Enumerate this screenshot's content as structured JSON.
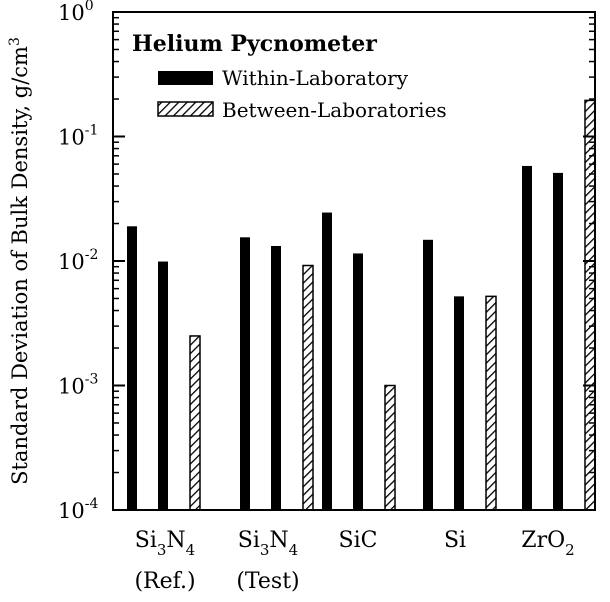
{
  "chart_data": {
    "type": "bar",
    "title": "Helium Pycnometer",
    "ylabel": "Standard Deviation of Bulk Density, g/cm",
    "ylabel_sup": "3",
    "yscale": "log",
    "ylim": [
      0.0001,
      1
    ],
    "yticks": [
      {
        "base": "10",
        "exp": "-4"
      },
      {
        "base": "10",
        "exp": "-3"
      },
      {
        "base": "10",
        "exp": "-2"
      },
      {
        "base": "10",
        "exp": "-1"
      },
      {
        "base": "10",
        "exp": "0"
      }
    ],
    "categories": [
      {
        "main": "Si",
        "sub1": "3",
        "mid": "N",
        "sub2": "4",
        "line2": "(Ref.)"
      },
      {
        "main": "Si",
        "sub1": "3",
        "mid": "N",
        "sub2": "4",
        "line2": "(Test)"
      },
      {
        "main": "SiC",
        "sub1": "",
        "mid": "",
        "sub2": "",
        "line2": ""
      },
      {
        "main": "Si",
        "sub1": "",
        "mid": "",
        "sub2": "",
        "line2": ""
      },
      {
        "main": "ZrO",
        "sub1": "2",
        "mid": "",
        "sub2": "",
        "line2": ""
      }
    ],
    "legend": [
      {
        "label": "Within-Laboratory",
        "pattern": "solid"
      },
      {
        "label": "Between-Laboratories",
        "pattern": "hatched"
      }
    ],
    "legend_position": "top-left",
    "groups": [
      {
        "within": [
          0.019,
          0.0099
        ],
        "between": 0.0025
      },
      {
        "within": [
          0.0155,
          0.0132
        ],
        "between": 0.0092
      },
      {
        "within": [
          0.0245,
          0.0115
        ],
        "between": 0.001
      },
      {
        "within": [
          0.0148,
          0.0052
        ],
        "between": 0.0052
      },
      {
        "within": [
          0.058,
          0.051
        ],
        "between": 0.195
      }
    ],
    "grid": false
  }
}
